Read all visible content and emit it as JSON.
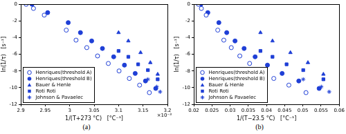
{
  "chart_data": [
    {
      "type": "scatter",
      "subtitle": "(a)",
      "x_label": "1/(T+273 °C)   [°C⁻¹]",
      "y_label": "ln(1/τ)   [s⁻¹]",
      "annotations": [
        "×10⁻³"
      ],
      "xlim": [
        0.0029,
        0.0032
      ],
      "xticks": [
        {
          "value": 0.0029,
          "label": "2.9"
        },
        {
          "value": 0.00295,
          "label": "2.95"
        },
        {
          "value": 0.003,
          "label": "3"
        },
        {
          "value": 0.00305,
          "label": "3.05"
        },
        {
          "value": 0.0031,
          "label": "3.1"
        },
        {
          "value": 0.00315,
          "label": "3.15"
        },
        {
          "value": 0.0032,
          "label": "3.2"
        }
      ],
      "ylim": [
        -12,
        0
      ],
      "yticks": [
        -12,
        -10,
        -8,
        -6,
        -4,
        -2,
        0
      ],
      "grid": false,
      "legend": "lower left",
      "series": [
        {
          "name": "Henriques(threshold A)",
          "color": "#1f3fd6",
          "marker": "circle_open",
          "x": [
            0.002911,
            0.002926,
            0.002948,
            0.002993,
            0.003013,
            0.003035,
            0.003057,
            0.003079,
            0.003101,
            0.003122,
            0.003143,
            0.003163
          ],
          "values": [
            0,
            -0.5,
            -1.3,
            -3.1,
            -4.3,
            -5.2,
            -6.2,
            -7.1,
            -8.0,
            -8.9,
            -9.7,
            -10.6
          ]
        },
        {
          "name": "Henriques(threshold B)",
          "color": "#1f3fd6",
          "marker": "circle",
          "x": [
            0.002923,
            0.002955,
            0.002997,
            0.003022,
            0.003045,
            0.003067,
            0.00309,
            0.003112,
            0.003134,
            0.003155,
            0.003176
          ],
          "values": [
            0,
            -1.0,
            -2.2,
            -3.4,
            -4.4,
            -5.3,
            -6.3,
            -7.3,
            -8.3,
            -9.2,
            -10.1
          ]
        },
        {
          "name": "Bauer & Henle",
          "color": "#1f3fd6",
          "marker": "triangle",
          "x": [
            0.0031,
            0.00312,
            0.003145,
            0.003165,
            0.00318
          ],
          "values": [
            -3.4,
            -4.4,
            -5.8,
            -7.0,
            -8.4
          ]
        },
        {
          "name": "Roti Roti",
          "color": "#1f3fd6",
          "marker": "square",
          "x": [
            0.0031,
            0.00312,
            0.00314,
            0.00316,
            0.00318
          ],
          "values": [
            -5.6,
            -6.3,
            -7.2,
            -7.9,
            -9.0
          ]
        },
        {
          "name": "Johnson & Pavaelec",
          "color": "#1f3fd6",
          "marker": "asterisk",
          "x": [
            0.00316,
            0.003178,
            0.003185
          ],
          "values": [
            -9.0,
            -9.9,
            -10.5
          ]
        }
      ]
    },
    {
      "type": "scatter",
      "subtitle": "(b)",
      "x_label": "1/(T−23.5 °C)   [°C⁻¹]",
      "y_label": "ln(1/τ)   [s⁻¹]",
      "xlim": [
        0.02,
        0.06
      ],
      "xticks": [
        0.02,
        0.025,
        0.03,
        0.035,
        0.04,
        0.045,
        0.05,
        0.055,
        0.06
      ],
      "ylim": [
        -12,
        0
      ],
      "yticks": [
        -12,
        -10,
        -8,
        -6,
        -4,
        -2,
        0
      ],
      "grid": false,
      "legend": "lower left",
      "series": [
        {
          "name": "Henriques(threshold A)",
          "color": "#1f3fd6",
          "marker": "circle_open",
          "x": [
            0.02127,
            0.02209,
            0.02341,
            0.02659,
            0.02826,
            0.03031,
            0.03266,
            0.03536,
            0.03849,
            0.042,
            0.04615,
            0.05086
          ],
          "values": [
            0,
            -0.5,
            -1.3,
            -3.1,
            -4.3,
            -5.2,
            -6.2,
            -7.1,
            -8.0,
            -8.9,
            -9.7,
            -10.6
          ]
        },
        {
          "name": "Henriques(threshold B)",
          "color": "#1f3fd6",
          "marker": "circle",
          "x": [
            0.02193,
            0.02386,
            0.0269,
            0.02906,
            0.03134,
            0.03384,
            0.03687,
            0.04026,
            0.04429,
            0.04888,
            0.05447
          ],
          "values": [
            0,
            -1.0,
            -2.2,
            -3.4,
            -4.4,
            -5.3,
            -6.3,
            -7.3,
            -8.3,
            -9.2,
            -10.1
          ]
        },
        {
          "name": "Bauer & Henle",
          "color": "#1f3fd6",
          "marker": "triangle",
          "x": [
            0.03834,
            0.04165,
            0.04658,
            0.05139,
            0.05565
          ],
          "values": [
            -3.4,
            -4.4,
            -5.8,
            -7.0,
            -8.4
          ]
        },
        {
          "name": "Roti Roti",
          "color": "#1f3fd6",
          "marker": "square",
          "x": [
            0.03834,
            0.04165,
            0.04552,
            0.0501,
            0.05565
          ],
          "values": [
            -5.6,
            -6.3,
            -7.2,
            -7.9,
            -9.0
          ]
        },
        {
          "name": "Johnson & Pavaelec",
          "color": "#1f3fd6",
          "marker": "asterisk",
          "x": [
            0.0501,
            0.05507,
            0.05724
          ],
          "values": [
            -9.0,
            -9.9,
            -10.5
          ]
        }
      ]
    }
  ]
}
